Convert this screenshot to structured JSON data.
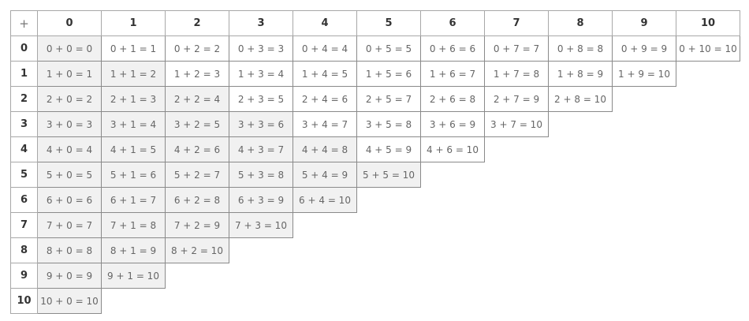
{
  "table": {
    "corner": "+",
    "column_headers": [
      "0",
      "1",
      "2",
      "3",
      "4",
      "5",
      "6",
      "7",
      "8",
      "9",
      "10"
    ],
    "row_headers": [
      "0",
      "1",
      "2",
      "3",
      "4",
      "5",
      "6",
      "7",
      "8",
      "9",
      "10"
    ],
    "rows": [
      [
        "0 + 0 = 0",
        "0 + 1 = 1",
        "0 + 2 = 2",
        "0 + 3 = 3",
        "0 + 4 = 4",
        "0 + 5 = 5",
        "0 + 6 = 6",
        "0 + 7 = 7",
        "0 + 8 = 8",
        "0 + 9 = 9",
        "0 + 10 = 10"
      ],
      [
        "1 + 0 = 1",
        "1 + 1 = 2",
        "1 + 2 = 3",
        "1 + 3 = 4",
        "1 + 4 = 5",
        "1 + 5 = 6",
        "1 + 6 = 7",
        "1 + 7 = 8",
        "1 + 8 = 9",
        "1 + 9 = 10"
      ],
      [
        "2 + 0 = 2",
        "2 + 1 = 3",
        "2 + 2 = 4",
        "2 + 3 = 5",
        "2 + 4 = 6",
        "2 + 5 = 7",
        "2 + 6 = 8",
        "2 + 7 = 9",
        "2 + 8 = 10"
      ],
      [
        "3 + 0 = 3",
        "3 + 1 = 4",
        "3 + 2 = 5",
        "3 + 3 = 6",
        "3 + 4 = 7",
        "3 + 5 = 8",
        "3 + 6 = 9",
        "3 + 7 = 10"
      ],
      [
        "4 + 0 = 4",
        "4 + 1 = 5",
        "4 + 2 = 6",
        "4 + 3 = 7",
        "4 + 4 = 8",
        "4 + 5 = 9",
        "4 + 6 = 10"
      ],
      [
        "5 + 0 = 5",
        "5 + 1 = 6",
        "5 + 2 = 7",
        "5 + 3 = 8",
        "5 + 4 = 9",
        "5 + 5 = 10"
      ],
      [
        "6 + 0 = 6",
        "6 + 1 = 7",
        "6 + 2 = 8",
        "6 + 3 = 9",
        "6 + 4 = 10"
      ],
      [
        "7 + 0 = 7",
        "7 + 1 = 8",
        "7 + 2 = 9",
        "7 + 3 = 10"
      ],
      [
        "8 + 0 = 8",
        "8 + 1 = 9",
        "8 + 2 = 10"
      ],
      [
        "9 + 0 = 9",
        "9 + 1 = 10"
      ],
      [
        "10 + 0 = 10"
      ]
    ],
    "shaded_color": "#f1f1f1"
  }
}
